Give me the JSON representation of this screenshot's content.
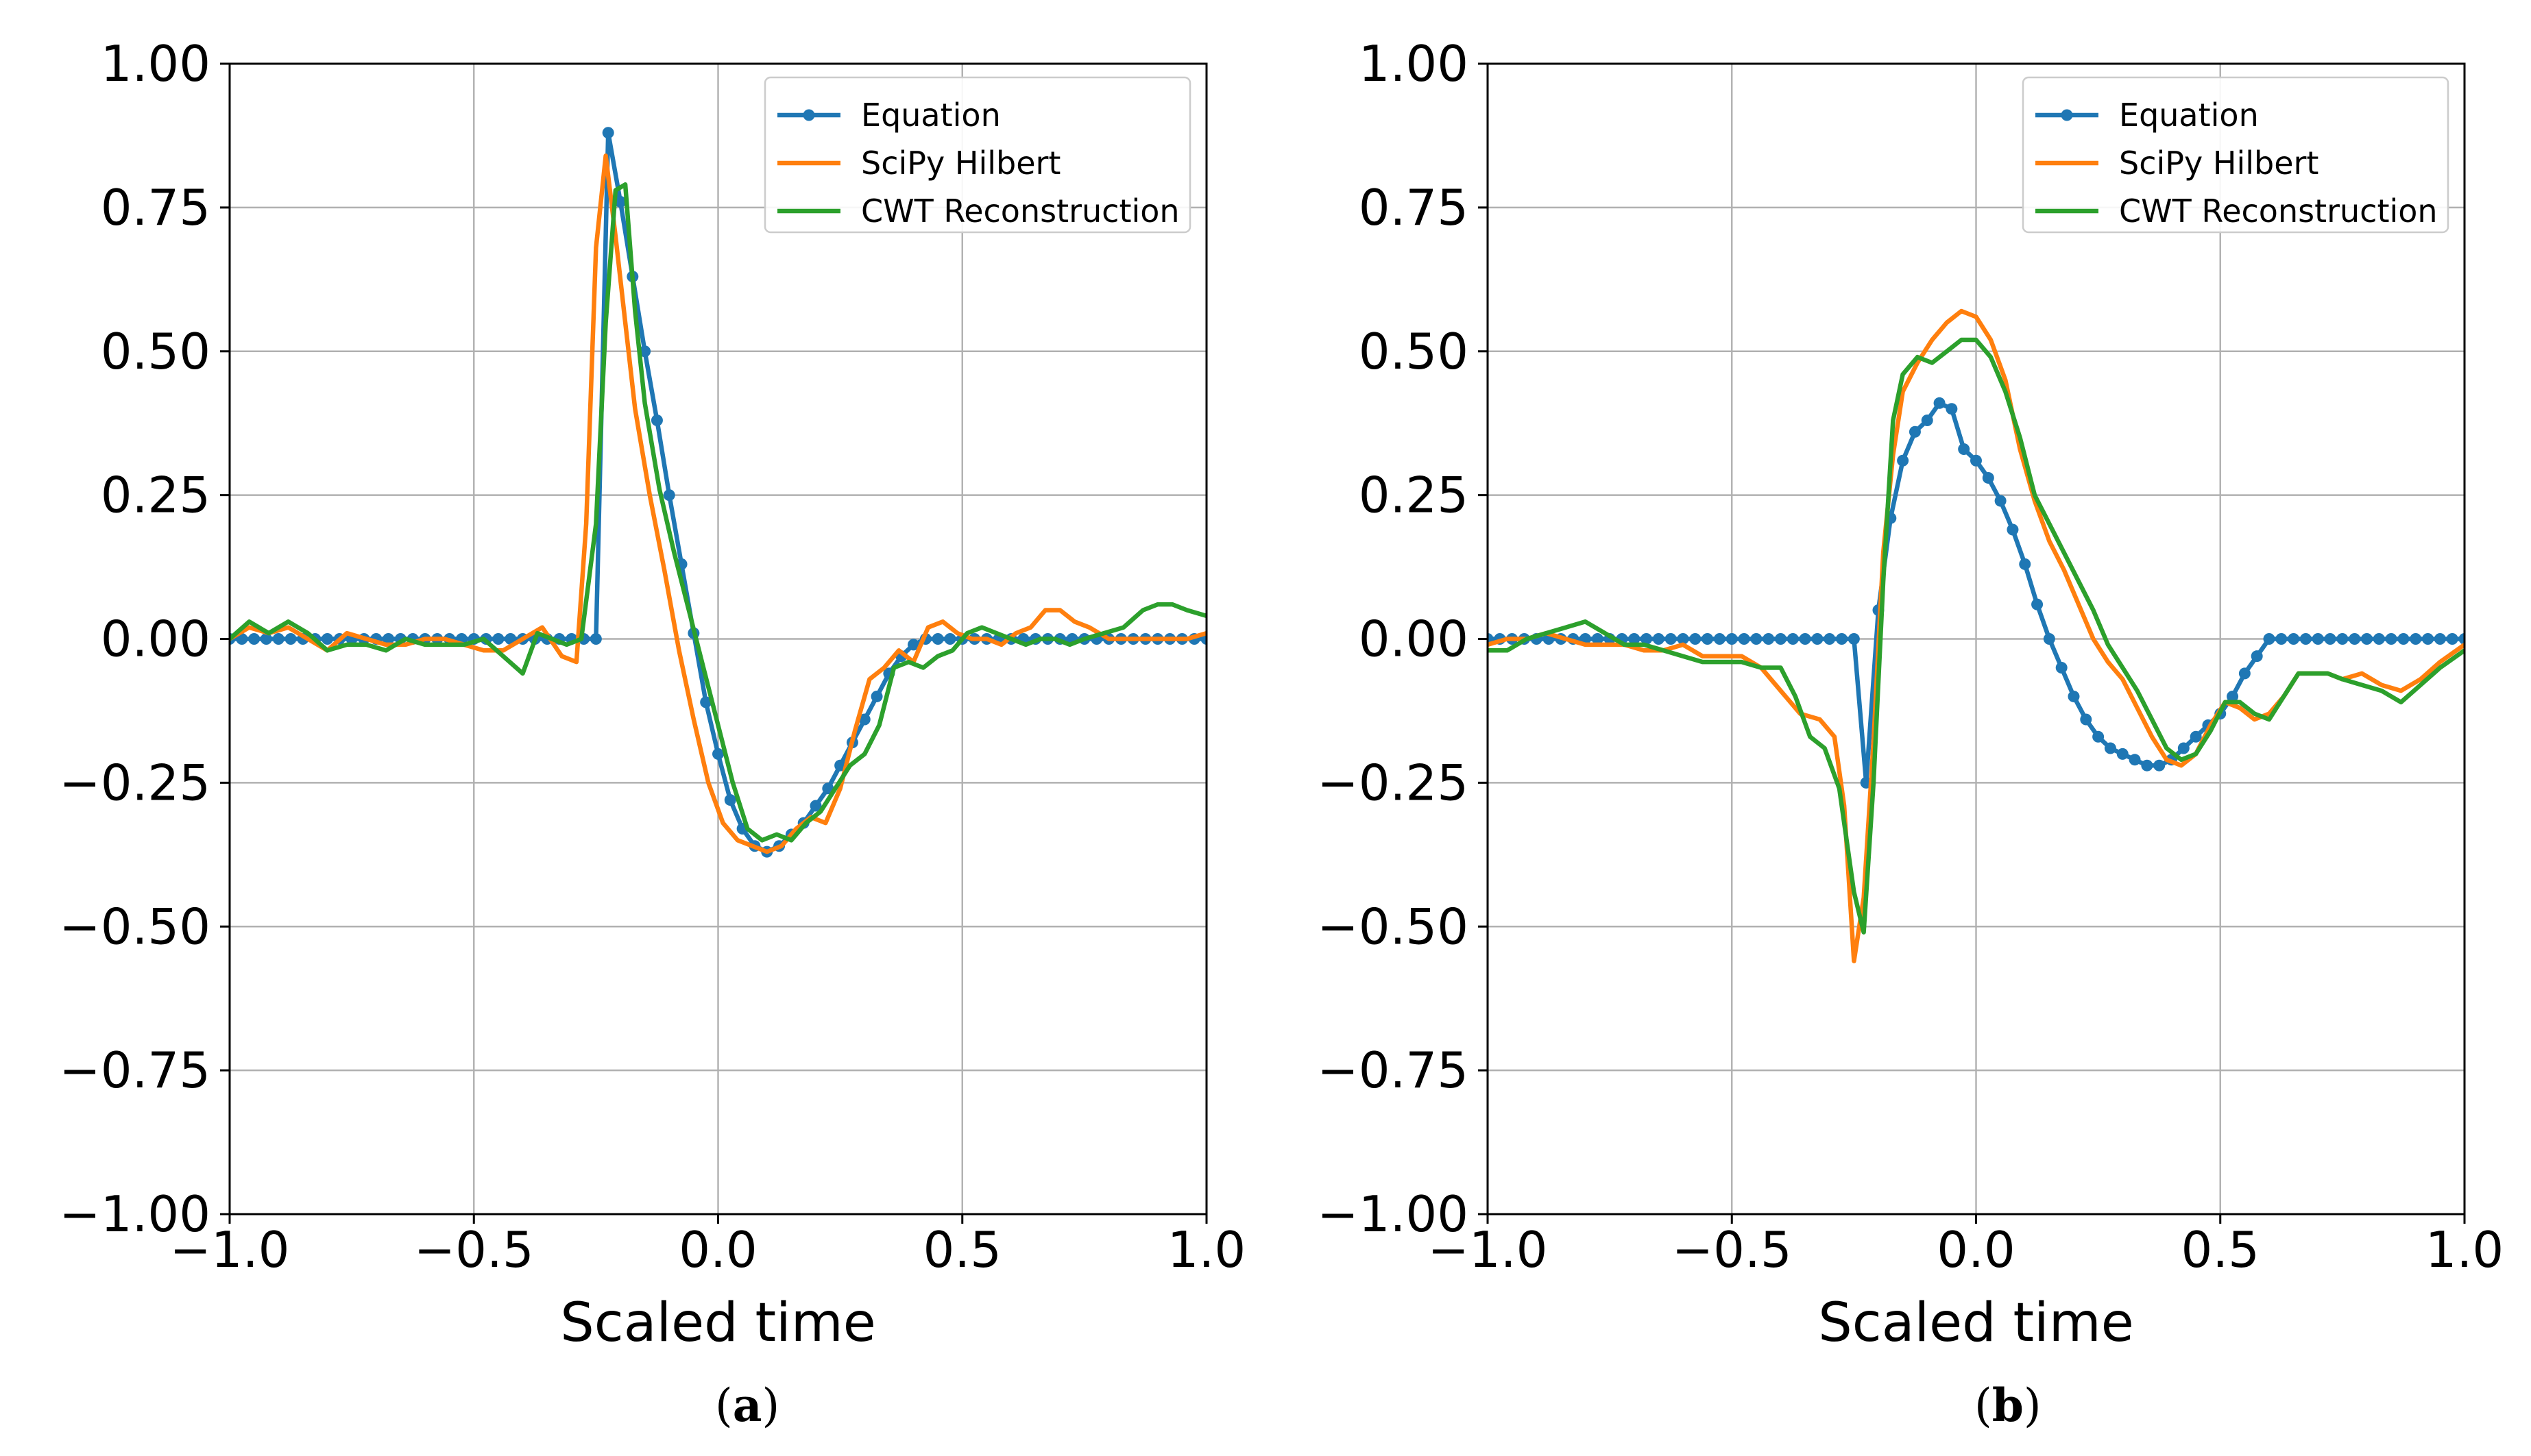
{
  "chart_data": [
    {
      "type": "line",
      "panel": "a",
      "panel_label": "a",
      "title": "",
      "xlabel": "Scaled time",
      "ylabel": "",
      "xlim": [
        -1.0,
        1.0
      ],
      "ylim": [
        -1.0,
        1.0
      ],
      "xticks": [
        -1.0,
        -0.5,
        0.0,
        0.5,
        1.0
      ],
      "xtick_labels": [
        "−1.0",
        "−0.5",
        "0.0",
        "0.5",
        "1.0"
      ],
      "yticks": [
        -1.0,
        -0.75,
        -0.5,
        -0.25,
        0.0,
        0.25,
        0.5,
        0.75,
        1.0
      ],
      "ytick_labels": [
        "−1.00",
        "−0.75",
        "−0.50",
        "−0.25",
        "0.00",
        "0.25",
        "0.50",
        "0.75",
        "1.00"
      ],
      "grid": true,
      "legend_position": "top-right",
      "series": [
        {
          "name": "Equation",
          "color": "#1f77b4",
          "markers": true,
          "x": [
            -1.0,
            -0.975,
            -0.95,
            -0.925,
            -0.9,
            -0.875,
            -0.85,
            -0.825,
            -0.8,
            -0.775,
            -0.75,
            -0.725,
            -0.7,
            -0.675,
            -0.65,
            -0.625,
            -0.6,
            -0.575,
            -0.55,
            -0.525,
            -0.5,
            -0.475,
            -0.45,
            -0.425,
            -0.4,
            -0.375,
            -0.35,
            -0.325,
            -0.3,
            -0.275,
            -0.25,
            -0.225,
            -0.2,
            -0.175,
            -0.15,
            -0.125,
            -0.1,
            -0.075,
            -0.05,
            -0.025,
            0.0,
            0.025,
            0.05,
            0.075,
            0.1,
            0.125,
            0.15,
            0.175,
            0.2,
            0.225,
            0.25,
            0.275,
            0.3,
            0.325,
            0.35,
            0.375,
            0.4,
            0.425,
            0.45,
            0.475,
            0.5,
            0.525,
            0.55,
            0.575,
            0.6,
            0.625,
            0.65,
            0.675,
            0.7,
            0.725,
            0.75,
            0.775,
            0.8,
            0.825,
            0.85,
            0.875,
            0.9,
            0.925,
            0.95,
            0.975,
            1.0
          ],
          "y": [
            0,
            0,
            0,
            0,
            0,
            0,
            0,
            0,
            0,
            0,
            0,
            0,
            0,
            0,
            0,
            0,
            0,
            0,
            0,
            0,
            0,
            0,
            0,
            0,
            0,
            0,
            0,
            0,
            0,
            0,
            0,
            0.88,
            0.76,
            0.63,
            0.5,
            0.38,
            0.25,
            0.13,
            0.01,
            -0.11,
            -0.2,
            -0.28,
            -0.33,
            -0.36,
            -0.37,
            -0.36,
            -0.34,
            -0.32,
            -0.29,
            -0.26,
            -0.22,
            -0.18,
            -0.14,
            -0.1,
            -0.06,
            -0.03,
            -0.01,
            0,
            0,
            0,
            0,
            0,
            0,
            0,
            0,
            0,
            0,
            0,
            0,
            0,
            0,
            0,
            0,
            0,
            0,
            0,
            0,
            0,
            0,
            0,
            0
          ]
        },
        {
          "name": "SciPy Hilbert",
          "color": "#ff7f0e",
          "markers": false,
          "x": [
            -1.0,
            -0.96,
            -0.92,
            -0.88,
            -0.84,
            -0.8,
            -0.76,
            -0.72,
            -0.68,
            -0.64,
            -0.6,
            -0.56,
            -0.52,
            -0.48,
            -0.44,
            -0.4,
            -0.36,
            -0.32,
            -0.29,
            -0.27,
            -0.25,
            -0.23,
            -0.21,
            -0.19,
            -0.17,
            -0.14,
            -0.11,
            -0.08,
            -0.05,
            -0.02,
            0.01,
            0.04,
            0.07,
            0.1,
            0.13,
            0.16,
            0.19,
            0.22,
            0.25,
            0.28,
            0.31,
            0.34,
            0.37,
            0.4,
            0.43,
            0.46,
            0.49,
            0.52,
            0.55,
            0.58,
            0.61,
            0.64,
            0.67,
            0.7,
            0.73,
            0.76,
            0.8,
            0.84,
            0.88,
            0.92,
            0.96,
            1.0
          ],
          "y": [
            0.0,
            0.02,
            0.01,
            0.02,
            0.0,
            -0.02,
            0.01,
            0.0,
            -0.01,
            -0.01,
            0.0,
            0.0,
            -0.01,
            -0.02,
            -0.02,
            0.0,
            0.02,
            -0.03,
            -0.04,
            0.2,
            0.68,
            0.84,
            0.7,
            0.55,
            0.4,
            0.25,
            0.12,
            -0.02,
            -0.14,
            -0.25,
            -0.32,
            -0.35,
            -0.36,
            -0.37,
            -0.36,
            -0.33,
            -0.31,
            -0.32,
            -0.26,
            -0.16,
            -0.07,
            -0.05,
            -0.02,
            -0.04,
            0.02,
            0.03,
            0.01,
            0.0,
            0.0,
            -0.01,
            0.01,
            0.02,
            0.05,
            0.05,
            0.03,
            0.02,
            0.0,
            0.0,
            0.0,
            0.0,
            0.0,
            0.01
          ]
        },
        {
          "name": "CWT Reconstruction",
          "color": "#2ca02c",
          "markers": false,
          "x": [
            -1.0,
            -0.96,
            -0.92,
            -0.88,
            -0.84,
            -0.8,
            -0.76,
            -0.72,
            -0.68,
            -0.64,
            -0.6,
            -0.56,
            -0.52,
            -0.48,
            -0.44,
            -0.4,
            -0.37,
            -0.34,
            -0.31,
            -0.28,
            -0.25,
            -0.23,
            -0.21,
            -0.19,
            -0.17,
            -0.15,
            -0.12,
            -0.09,
            -0.06,
            -0.03,
            0.0,
            0.03,
            0.06,
            0.09,
            0.12,
            0.15,
            0.18,
            0.21,
            0.24,
            0.27,
            0.3,
            0.33,
            0.36,
            0.39,
            0.42,
            0.45,
            0.48,
            0.51,
            0.54,
            0.57,
            0.6,
            0.63,
            0.66,
            0.69,
            0.72,
            0.75,
            0.79,
            0.83,
            0.87,
            0.9,
            0.93,
            0.96,
            1.0
          ],
          "y": [
            0.0,
            0.03,
            0.01,
            0.03,
            0.01,
            -0.02,
            -0.01,
            -0.01,
            -0.02,
            0.0,
            -0.01,
            -0.01,
            -0.01,
            0.0,
            -0.03,
            -0.06,
            0.01,
            0.0,
            -0.01,
            0.0,
            0.2,
            0.55,
            0.78,
            0.79,
            0.57,
            0.41,
            0.26,
            0.15,
            0.05,
            -0.05,
            -0.15,
            -0.25,
            -0.33,
            -0.35,
            -0.34,
            -0.35,
            -0.32,
            -0.3,
            -0.26,
            -0.22,
            -0.2,
            -0.15,
            -0.05,
            -0.04,
            -0.05,
            -0.03,
            -0.02,
            0.01,
            0.02,
            0.01,
            0.0,
            -0.01,
            0.0,
            0.0,
            -0.01,
            0.0,
            0.01,
            0.02,
            0.05,
            0.06,
            0.06,
            0.05,
            0.04
          ]
        }
      ]
    },
    {
      "type": "line",
      "panel": "b",
      "panel_label": "b",
      "title": "",
      "xlabel": "Scaled time",
      "ylabel": "",
      "xlim": [
        -1.0,
        1.0
      ],
      "ylim": [
        -1.0,
        1.0
      ],
      "xticks": [
        -1.0,
        -0.5,
        0.0,
        0.5,
        1.0
      ],
      "xtick_labels": [
        "−1.0",
        "−0.5",
        "0.0",
        "0.5",
        "1.0"
      ],
      "yticks": [
        -1.0,
        -0.75,
        -0.5,
        -0.25,
        0.0,
        0.25,
        0.5,
        0.75,
        1.0
      ],
      "ytick_labels": [
        "−1.00",
        "−0.75",
        "−0.50",
        "−0.25",
        "0.00",
        "0.25",
        "0.50",
        "0.75",
        "1.00"
      ],
      "grid": true,
      "legend_position": "top-right",
      "series": [
        {
          "name": "Equation",
          "color": "#1f77b4",
          "markers": true,
          "x": [
            -1.0,
            -0.975,
            -0.95,
            -0.925,
            -0.9,
            -0.875,
            -0.85,
            -0.825,
            -0.8,
            -0.775,
            -0.75,
            -0.725,
            -0.7,
            -0.675,
            -0.65,
            -0.625,
            -0.6,
            -0.575,
            -0.55,
            -0.525,
            -0.5,
            -0.475,
            -0.45,
            -0.425,
            -0.4,
            -0.375,
            -0.35,
            -0.325,
            -0.3,
            -0.275,
            -0.25,
            -0.225,
            -0.2,
            -0.175,
            -0.15,
            -0.125,
            -0.1,
            -0.075,
            -0.05,
            -0.025,
            0.0,
            0.025,
            0.05,
            0.075,
            0.1,
            0.125,
            0.15,
            0.175,
            0.2,
            0.225,
            0.25,
            0.275,
            0.3,
            0.325,
            0.35,
            0.375,
            0.4,
            0.425,
            0.45,
            0.475,
            0.5,
            0.525,
            0.55,
            0.575,
            0.6,
            0.625,
            0.65,
            0.675,
            0.7,
            0.725,
            0.75,
            0.775,
            0.8,
            0.825,
            0.85,
            0.875,
            0.9,
            0.925,
            0.95,
            0.975,
            1.0
          ],
          "y": [
            0,
            0,
            0,
            0,
            0,
            0,
            0,
            0,
            0,
            0,
            0,
            0,
            0,
            0,
            0,
            0,
            0,
            0,
            0,
            0,
            0,
            0,
            0,
            0,
            0,
            0,
            0,
            0,
            0,
            0,
            0,
            -0.25,
            0.05,
            0.21,
            0.31,
            0.36,
            0.38,
            0.41,
            0.4,
            0.33,
            0.31,
            0.28,
            0.24,
            0.19,
            0.13,
            0.06,
            0.0,
            -0.05,
            -0.1,
            -0.14,
            -0.17,
            -0.19,
            -0.2,
            -0.21,
            -0.22,
            -0.22,
            -0.21,
            -0.19,
            -0.17,
            -0.15,
            -0.13,
            -0.1,
            -0.06,
            -0.03,
            0,
            0,
            0,
            0,
            0,
            0,
            0,
            0,
            0,
            0,
            0,
            0,
            0,
            0,
            0,
            0,
            0
          ],
          "y_fix": true
        },
        {
          "name": "SciPy Hilbert",
          "color": "#ff7f0e",
          "markers": false,
          "x": [
            -1.0,
            -0.96,
            -0.92,
            -0.88,
            -0.84,
            -0.8,
            -0.76,
            -0.72,
            -0.68,
            -0.64,
            -0.6,
            -0.56,
            -0.52,
            -0.48,
            -0.44,
            -0.4,
            -0.36,
            -0.32,
            -0.29,
            -0.27,
            -0.25,
            -0.23,
            -0.21,
            -0.19,
            -0.17,
            -0.15,
            -0.12,
            -0.09,
            -0.06,
            -0.03,
            0.0,
            0.03,
            0.06,
            0.09,
            0.12,
            0.15,
            0.18,
            0.21,
            0.24,
            0.27,
            0.3,
            0.33,
            0.36,
            0.39,
            0.42,
            0.45,
            0.48,
            0.51,
            0.54,
            0.57,
            0.6,
            0.63,
            0.66,
            0.69,
            0.72,
            0.75,
            0.79,
            0.83,
            0.87,
            0.91,
            0.95,
            1.0
          ],
          "y": [
            -0.01,
            0.0,
            0.0,
            0.01,
            0.0,
            -0.01,
            -0.01,
            -0.01,
            -0.02,
            -0.02,
            -0.01,
            -0.03,
            -0.03,
            -0.03,
            -0.05,
            -0.09,
            -0.13,
            -0.14,
            -0.17,
            -0.29,
            -0.56,
            -0.45,
            -0.18,
            0.15,
            0.32,
            0.43,
            0.48,
            0.52,
            0.55,
            0.57,
            0.56,
            0.52,
            0.45,
            0.33,
            0.24,
            0.17,
            0.12,
            0.06,
            0.0,
            -0.04,
            -0.07,
            -0.12,
            -0.17,
            -0.21,
            -0.22,
            -0.2,
            -0.15,
            -0.11,
            -0.12,
            -0.14,
            -0.13,
            -0.1,
            -0.06,
            -0.06,
            -0.06,
            -0.07,
            -0.06,
            -0.08,
            -0.09,
            -0.07,
            -0.04,
            -0.01
          ]
        },
        {
          "name": "CWT Reconstruction",
          "color": "#2ca02c",
          "markers": false,
          "x": [
            -1.0,
            -0.96,
            -0.92,
            -0.88,
            -0.84,
            -0.8,
            -0.76,
            -0.72,
            -0.68,
            -0.64,
            -0.6,
            -0.56,
            -0.52,
            -0.48,
            -0.44,
            -0.4,
            -0.37,
            -0.34,
            -0.31,
            -0.28,
            -0.25,
            -0.23,
            -0.21,
            -0.19,
            -0.17,
            -0.15,
            -0.12,
            -0.09,
            -0.06,
            -0.03,
            0.0,
            0.03,
            0.06,
            0.09,
            0.12,
            0.15,
            0.18,
            0.21,
            0.24,
            0.27,
            0.3,
            0.33,
            0.36,
            0.39,
            0.42,
            0.45,
            0.48,
            0.51,
            0.54,
            0.57,
            0.6,
            0.63,
            0.66,
            0.69,
            0.72,
            0.75,
            0.79,
            0.83,
            0.87,
            0.91,
            0.95,
            1.0
          ],
          "y": [
            -0.02,
            -0.02,
            0.0,
            0.01,
            0.02,
            0.03,
            0.01,
            -0.01,
            -0.01,
            -0.02,
            -0.03,
            -0.04,
            -0.04,
            -0.04,
            -0.05,
            -0.05,
            -0.1,
            -0.17,
            -0.19,
            -0.26,
            -0.44,
            -0.51,
            -0.25,
            0.1,
            0.38,
            0.46,
            0.49,
            0.48,
            0.5,
            0.52,
            0.52,
            0.49,
            0.43,
            0.35,
            0.25,
            0.2,
            0.15,
            0.1,
            0.05,
            -0.01,
            -0.05,
            -0.09,
            -0.14,
            -0.19,
            -0.21,
            -0.2,
            -0.16,
            -0.11,
            -0.11,
            -0.13,
            -0.14,
            -0.1,
            -0.06,
            -0.06,
            -0.06,
            -0.07,
            -0.08,
            -0.09,
            -0.11,
            -0.08,
            -0.05,
            -0.02
          ]
        }
      ]
    }
  ]
}
